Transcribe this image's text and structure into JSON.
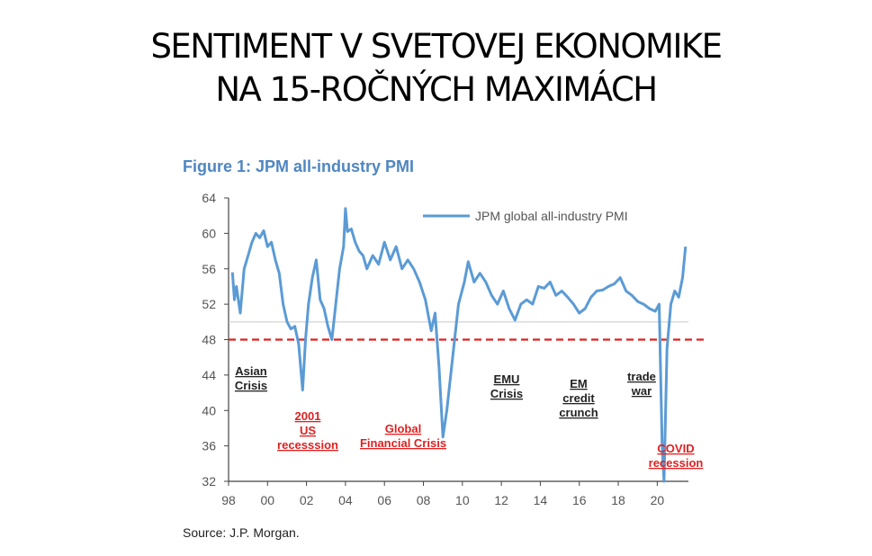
{
  "slide": {
    "title_line1": "SENTIMENT V SVETOVEJ EKONOMIKE",
    "title_line2": "NA 15-ROČNÝCH MAXIMÁCH"
  },
  "source": "Source: J.P. Morgan.",
  "colors": {
    "series": "#5b9bd5",
    "threshold": "#e02020",
    "annotation_black": "#222222",
    "annotation_red": "#e02020",
    "figure_title": "#4f86c1"
  },
  "chart_data": {
    "type": "line",
    "title": "Figure 1: JPM all-industry PMI",
    "xlabel": "",
    "ylabel": "",
    "xlim": [
      1998,
      2021.6
    ],
    "ylim": [
      32,
      64
    ],
    "x_ticks": [
      1998,
      2000,
      2002,
      2004,
      2006,
      2008,
      2010,
      2012,
      2014,
      2016,
      2018,
      2020
    ],
    "x_tick_labels": [
      "98",
      "00",
      "02",
      "04",
      "06",
      "08",
      "10",
      "12",
      "14",
      "16",
      "18",
      "20"
    ],
    "y_ticks": [
      32,
      36,
      40,
      44,
      48,
      52,
      56,
      60,
      64
    ],
    "y_tick_labels": [
      "32",
      "36",
      "40",
      "44",
      "48",
      "52",
      "56",
      "60",
      "64"
    ],
    "threshold": 48,
    "neutral_line": 50,
    "legend": "JPM global all-industry PMI",
    "series": [
      {
        "name": "JPM global all-industry PMI",
        "x": [
          1998.2,
          1998.3,
          1998.4,
          1998.6,
          1998.8,
          1999.0,
          1999.2,
          1999.4,
          1999.6,
          1999.8,
          2000.0,
          2000.2,
          2000.4,
          2000.6,
          2000.8,
          2001.0,
          2001.2,
          2001.4,
          2001.6,
          2001.8,
          2001.95,
          2002.1,
          2002.3,
          2002.5,
          2002.7,
          2002.9,
          2003.1,
          2003.3,
          2003.5,
          2003.7,
          2003.9,
          2004.0,
          2004.1,
          2004.3,
          2004.5,
          2004.7,
          2004.9,
          2005.1,
          2005.4,
          2005.7,
          2006.0,
          2006.3,
          2006.6,
          2006.9,
          2007.2,
          2007.5,
          2007.8,
          2008.1,
          2008.4,
          2008.6,
          2008.8,
          2009.0,
          2009.2,
          2009.5,
          2009.8,
          2010.1,
          2010.3,
          2010.6,
          2010.9,
          2011.2,
          2011.5,
          2011.8,
          2012.1,
          2012.4,
          2012.7,
          2013.0,
          2013.3,
          2013.6,
          2013.9,
          2014.2,
          2014.5,
          2014.8,
          2015.1,
          2015.4,
          2015.7,
          2016.0,
          2016.3,
          2016.6,
          2016.9,
          2017.2,
          2017.5,
          2017.8,
          2018.1,
          2018.4,
          2018.7,
          2019.0,
          2019.3,
          2019.6,
          2019.9,
          2020.1,
          2020.25,
          2020.35,
          2020.5,
          2020.7,
          2020.9,
          2021.1,
          2021.3,
          2021.45
        ],
        "values": [
          55.6,
          52.5,
          54.0,
          51.0,
          56.0,
          57.5,
          59.0,
          60.0,
          59.5,
          60.3,
          58.5,
          59.0,
          57.0,
          55.5,
          52.0,
          50.0,
          49.2,
          49.5,
          47.5,
          42.3,
          48.0,
          52.0,
          55.0,
          57.0,
          52.5,
          51.5,
          49.5,
          48.0,
          52.0,
          56.0,
          58.5,
          62.8,
          60.2,
          60.5,
          59.0,
          58.0,
          57.5,
          56.0,
          57.5,
          56.5,
          59.0,
          57.0,
          58.5,
          56.0,
          57.0,
          56.0,
          54.5,
          52.5,
          49.0,
          51.0,
          45.0,
          37.0,
          40.0,
          46.0,
          52.0,
          54.5,
          56.8,
          54.5,
          55.5,
          54.5,
          53.0,
          52.0,
          53.5,
          51.5,
          50.2,
          52.0,
          52.5,
          52.0,
          54.0,
          53.8,
          54.5,
          53.0,
          53.5,
          52.8,
          52.0,
          51.0,
          51.5,
          52.8,
          53.5,
          53.6,
          54.0,
          54.3,
          55.0,
          53.5,
          53.0,
          52.3,
          52.0,
          51.5,
          51.2,
          52.0,
          36.0,
          32.0,
          47.0,
          52.0,
          53.5,
          52.8,
          55.0,
          58.5
        ]
      }
    ],
    "annotations": [
      {
        "lines": [
          "Asian",
          "Crisis"
        ],
        "color": "black"
      },
      {
        "lines": [
          "2001",
          "US",
          "recesssion"
        ],
        "color": "red"
      },
      {
        "lines": [
          "Global",
          "Financial Crisis"
        ],
        "color": "red"
      },
      {
        "lines": [
          "EMU",
          "Crisis"
        ],
        "color": "black"
      },
      {
        "lines": [
          "EM",
          "credit",
          "crunch"
        ],
        "color": "black"
      },
      {
        "lines": [
          "trade",
          "war"
        ],
        "color": "black"
      },
      {
        "lines": [
          "COVID",
          "recession"
        ],
        "color": "red"
      }
    ]
  }
}
